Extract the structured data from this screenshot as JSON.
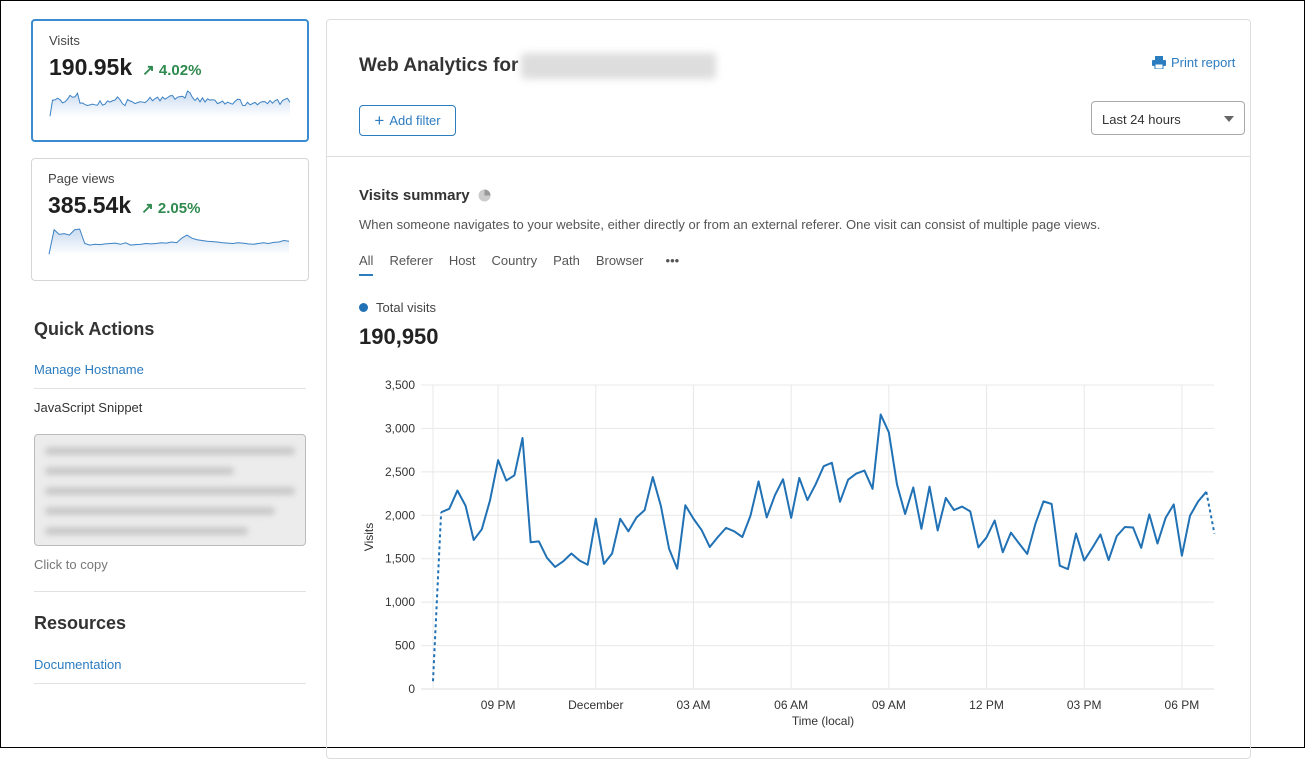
{
  "sidebar": {
    "cards": [
      {
        "label": "Visits",
        "value": "190.95k",
        "change": "4.02%",
        "trend_icon": "arrow-up-right-icon",
        "active": true
      },
      {
        "label": "Page views",
        "value": "385.54k",
        "change": "2.05%",
        "trend_icon": "arrow-up-right-icon",
        "active": false
      }
    ],
    "page_views_sparkline": [
      100,
      3300,
      2700,
      2800,
      2600,
      3300,
      3400,
      1500,
      1300,
      1400,
      1350,
      1450,
      1500,
      1550,
      1400,
      1600,
      1300,
      1350,
      1400,
      1500,
      1450,
      1500,
      1600,
      1550,
      1700,
      1600,
      2200,
      2600,
      2200,
      2000,
      1900,
      1800,
      1750,
      1700,
      1600,
      1550,
      1500,
      1600,
      1550,
      1450,
      1400,
      1500,
      1600,
      1500,
      1650,
      1700,
      1900,
      1800
    ],
    "quick_actions_title": "Quick Actions",
    "manage_hostname": "Manage Hostname",
    "js_snippet_label": "JavaScript Snippet",
    "click_to_copy": "Click to copy",
    "resources_title": "Resources",
    "documentation": "Documentation"
  },
  "header": {
    "title": "Web Analytics for",
    "print_report": "Print report",
    "add_filter": "Add filter",
    "time_range": "Last 24 hours"
  },
  "summary": {
    "title": "Visits summary",
    "description": "When someone navigates to your website, either directly or from an external referer. One visit can consist of multiple page views.",
    "tabs": [
      "All",
      "Referer",
      "Host",
      "Country",
      "Path",
      "Browser"
    ],
    "more": "•••",
    "legend": "Total visits",
    "total": "190,950"
  },
  "colors": {
    "accent": "#2c7cc0",
    "series": "#2171b5",
    "positive": "#2f8a4f"
  },
  "chart_data": {
    "type": "line",
    "xlabel": "Time (local)",
    "ylabel": "Visits",
    "ylim": [
      0,
      3500
    ],
    "yticks": [
      "0",
      "500",
      "1,000",
      "1,500",
      "2,000",
      "2,500",
      "3,000",
      "3,500"
    ],
    "xticks": [
      "09 PM",
      "December",
      "03 AM",
      "06 AM",
      "09 AM",
      "12 PM",
      "03 PM",
      "06 PM"
    ],
    "grid": true,
    "dashed_segments": "first and last interval",
    "x": [
      "19:00",
      "19:15",
      "19:30",
      "19:45",
      "20:00",
      "20:15",
      "20:30",
      "20:45",
      "21:00",
      "21:15",
      "21:30",
      "21:45",
      "22:00",
      "22:15",
      "22:30",
      "22:45",
      "23:00",
      "23:15",
      "23:30",
      "23:45",
      "00:00",
      "00:15",
      "00:30",
      "00:45",
      "01:00",
      "01:15",
      "01:30",
      "01:45",
      "02:00",
      "02:15",
      "02:30",
      "02:45",
      "03:00",
      "03:15",
      "03:30",
      "03:45",
      "04:00",
      "04:15",
      "04:30",
      "04:45",
      "05:00",
      "05:15",
      "05:30",
      "05:45",
      "06:00",
      "06:15",
      "06:30",
      "06:45",
      "07:00",
      "07:15",
      "07:30",
      "07:45",
      "08:00",
      "08:15",
      "08:30",
      "08:45",
      "09:00",
      "09:15",
      "09:30",
      "09:45",
      "10:00",
      "10:15",
      "10:30",
      "10:45",
      "11:00",
      "11:15",
      "11:30",
      "11:45",
      "12:00",
      "12:15",
      "12:30",
      "12:45",
      "13:00",
      "13:15",
      "13:30",
      "13:45",
      "14:00",
      "14:15",
      "14:30",
      "14:45",
      "15:00",
      "15:15",
      "15:30",
      "15:45",
      "16:00",
      "16:15",
      "16:30",
      "16:45",
      "17:00",
      "17:15",
      "17:30",
      "17:45",
      "18:00",
      "18:15",
      "18:30",
      "18:45",
      "19:00"
    ],
    "series": [
      {
        "name": "Total visits",
        "values": [
          90,
          2035,
          2075,
          2285,
          2110,
          1715,
          1840,
          2170,
          2635,
          2400,
          2460,
          2890,
          1690,
          1700,
          1510,
          1405,
          1470,
          1560,
          1480,
          1430,
          1960,
          1440,
          1560,
          1960,
          1815,
          1975,
          2060,
          2440,
          2105,
          1615,
          1385,
          2115,
          1960,
          1830,
          1635,
          1750,
          1855,
          1815,
          1750,
          1995,
          2390,
          1975,
          2230,
          2415,
          1970,
          2430,
          2175,
          2355,
          2565,
          2605,
          2155,
          2410,
          2480,
          2515,
          2305,
          3160,
          2955,
          2355,
          2015,
          2320,
          1845,
          2330,
          1825,
          2200,
          2060,
          2100,
          2045,
          1630,
          1745,
          1940,
          1575,
          1800,
          1675,
          1555,
          1900,
          2160,
          2130,
          1420,
          1380,
          1790,
          1480,
          1625,
          1780,
          1485,
          1760,
          1865,
          1860,
          1625,
          2010,
          1675,
          1970,
          2125,
          1535,
          1995,
          2160,
          2270,
          1790
        ]
      }
    ]
  }
}
